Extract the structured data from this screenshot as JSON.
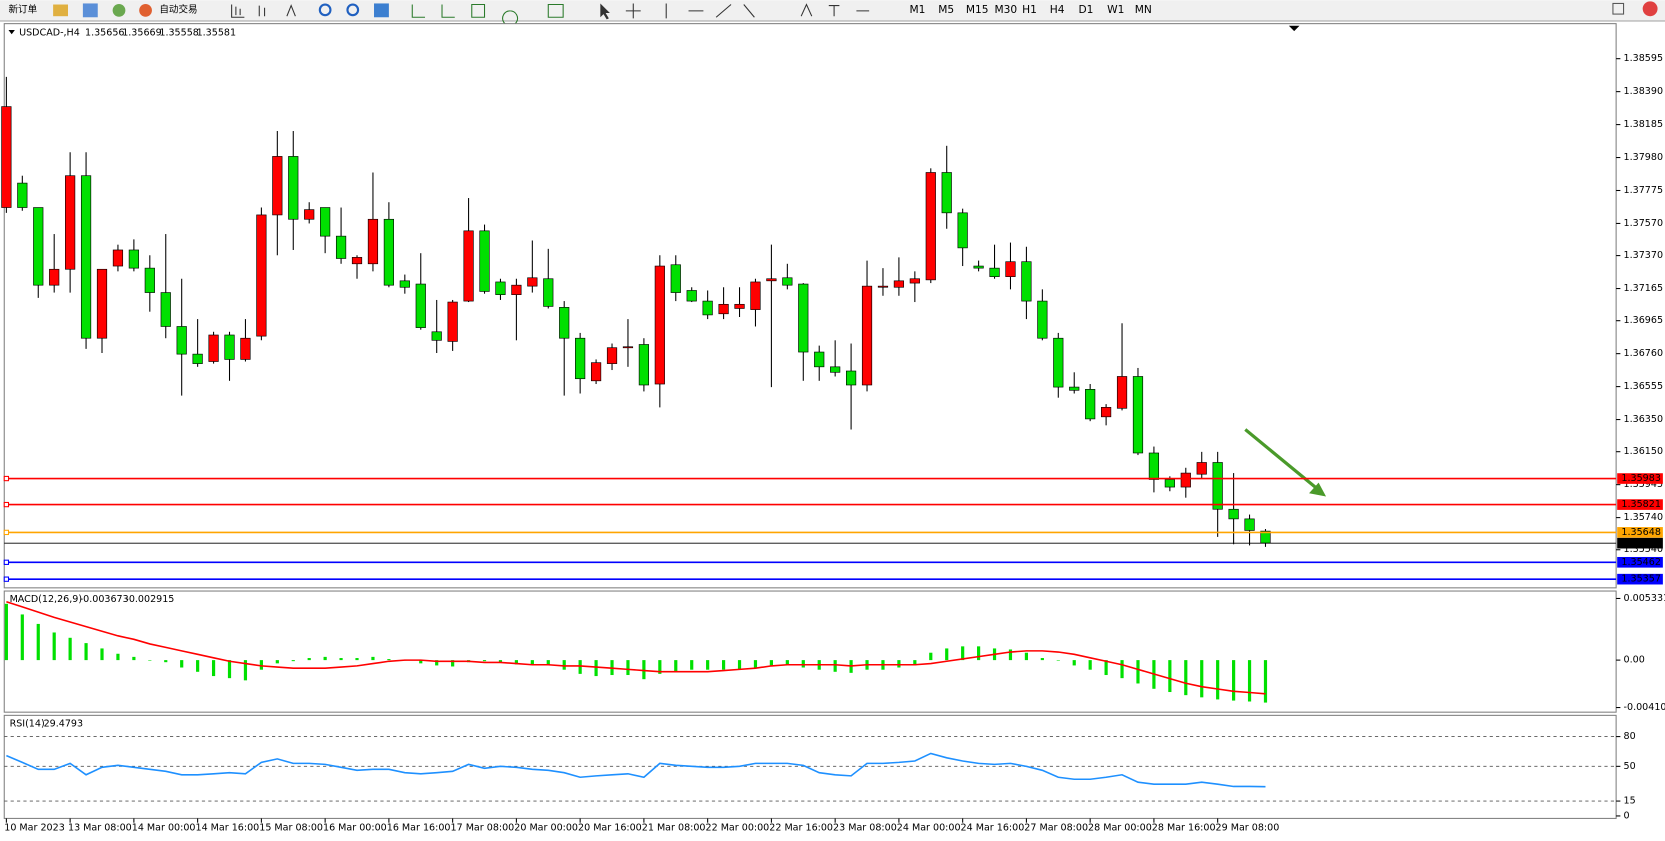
{
  "toolbar": {
    "buttons": [
      "新订单",
      "自动交易"
    ],
    "timeframes": [
      "M1",
      "M5",
      "M15",
      "M30",
      "H1",
      "H4",
      "D1",
      "W1",
      "MN"
    ]
  },
  "chart_data": [
    {
      "type": "candlestick",
      "title": "USDCAD-,H4",
      "categories": [
        "10 Mar 2023",
        null,
        null,
        null,
        "13 Mar 08:00",
        null,
        null,
        null,
        "14 Mar 00:00",
        null,
        null,
        null,
        "14 Mar 16:00",
        null,
        null,
        null,
        "15 Mar 08:00",
        null,
        null,
        null,
        "16 Mar 00:00",
        null,
        null,
        null,
        "16 Mar 16:00",
        null,
        null,
        null,
        "17 Mar 08:00",
        null,
        null,
        null,
        "20 Mar 00:00",
        null,
        null,
        null,
        "20 Mar 16:00",
        null,
        null,
        null,
        "21 Mar 08:00",
        null,
        null,
        null,
        "22 Mar 00:00",
        null,
        null,
        null,
        "22 Mar 16:00",
        null,
        null,
        null,
        "23 Mar 08:00",
        null,
        null,
        null,
        "24 Mar 00:00",
        null,
        null,
        null,
        "24 Mar 16:00",
        null,
        null,
        null,
        "27 Mar 08:00",
        null,
        null,
        null,
        "28 Mar 00:00",
        null,
        null,
        null,
        "28 Mar 16:00",
        null,
        null,
        null,
        "29 Mar 08:00",
        null,
        null,
        null
      ],
      "candles": [
        [
          1.37669,
          1.38482,
          1.37636,
          1.38297
        ],
        [
          1.37821,
          1.37867,
          1.37649,
          1.37669
        ],
        [
          1.37669,
          1.37669,
          1.37107,
          1.37186
        ],
        [
          1.37186,
          1.37504,
          1.3714,
          1.37285
        ],
        [
          1.37285,
          1.38013,
          1.3714,
          1.37867
        ],
        [
          1.37867,
          1.38013,
          1.3679,
          1.36856
        ],
        [
          1.36856,
          1.37285,
          1.36764,
          1.37285
        ],
        [
          1.37305,
          1.37438,
          1.37272,
          1.37405
        ],
        [
          1.37405,
          1.37471,
          1.37272,
          1.37292
        ],
        [
          1.37292,
          1.37372,
          1.37021,
          1.3714
        ],
        [
          1.3714,
          1.37504,
          1.36856,
          1.36929
        ],
        [
          1.36929,
          1.37226,
          1.36499,
          1.36757
        ],
        [
          1.36757,
          1.36975,
          1.36678,
          1.36698
        ],
        [
          1.36711,
          1.36896,
          1.36698,
          1.36876
        ],
        [
          1.36876,
          1.36896,
          1.36591,
          1.36724
        ],
        [
          1.36724,
          1.36975,
          1.36711,
          1.36856
        ],
        [
          1.36869,
          1.37669,
          1.36843,
          1.37623
        ],
        [
          1.37623,
          1.38145,
          1.37372,
          1.37987
        ],
        [
          1.37987,
          1.38145,
          1.37405,
          1.37596
        ],
        [
          1.37596,
          1.37702,
          1.3757,
          1.37656
        ],
        [
          1.37669,
          1.37669,
          1.37385,
          1.37491
        ],
        [
          1.37491,
          1.37669,
          1.37319,
          1.37352
        ],
        [
          1.37319,
          1.37372,
          1.37226,
          1.37359
        ],
        [
          1.37319,
          1.37887,
          1.37272,
          1.37596
        ],
        [
          1.37596,
          1.37702,
          1.37173,
          1.37186
        ],
        [
          1.37213,
          1.37252,
          1.37133,
          1.37173
        ],
        [
          1.37193,
          1.37385,
          1.36909,
          1.36922
        ],
        [
          1.36896,
          1.37094,
          1.36764,
          1.36843
        ],
        [
          1.36836,
          1.37094,
          1.36777,
          1.37081
        ],
        [
          1.37087,
          1.37728,
          1.37081,
          1.37524
        ],
        [
          1.37524,
          1.37563,
          1.37133,
          1.37147
        ],
        [
          1.37206,
          1.37226,
          1.37094,
          1.37127
        ],
        [
          1.37127,
          1.37226,
          1.36843,
          1.37186
        ],
        [
          1.3718,
          1.37464,
          1.3714,
          1.37232
        ],
        [
          1.37226,
          1.37412,
          1.37041,
          1.37054
        ],
        [
          1.37048,
          1.37087,
          1.36499,
          1.36856
        ],
        [
          1.36856,
          1.36889,
          1.36512,
          1.36604
        ],
        [
          1.36591,
          1.36724,
          1.36571,
          1.36704
        ],
        [
          1.36698,
          1.36823,
          1.36658,
          1.36797
        ],
        [
          1.36803,
          1.36975,
          1.36678,
          1.36803
        ],
        [
          1.36817,
          1.36856,
          1.36525,
          1.36565
        ],
        [
          1.36571,
          1.37372,
          1.36426,
          1.37305
        ],
        [
          1.37313,
          1.37372,
          1.37087,
          1.3714
        ],
        [
          1.37153,
          1.37173,
          1.37081,
          1.37087
        ],
        [
          1.37087,
          1.37153,
          1.36975,
          1.37001
        ],
        [
          1.37008,
          1.37173,
          1.36975,
          1.37067
        ],
        [
          1.37041,
          1.37173,
          1.36988,
          1.37067
        ],
        [
          1.37034,
          1.37226,
          1.36929,
          1.37206
        ],
        [
          1.37213,
          1.37438,
          1.36552,
          1.37226
        ],
        [
          1.37232,
          1.37319,
          1.3716,
          1.37186
        ],
        [
          1.37193,
          1.37199,
          1.36591,
          1.3677
        ],
        [
          1.3677,
          1.3681,
          1.36591,
          1.36678
        ],
        [
          1.36678,
          1.36843,
          1.36618,
          1.36644
        ],
        [
          1.36652,
          1.36823,
          1.36288,
          1.36565
        ],
        [
          1.36565,
          1.37339,
          1.36525,
          1.3718
        ],
        [
          1.37173,
          1.37292,
          1.3712,
          1.3718
        ],
        [
          1.37173,
          1.37359,
          1.3712,
          1.37213
        ],
        [
          1.37199,
          1.37272,
          1.37081,
          1.37226
        ],
        [
          1.37219,
          1.37913,
          1.37199,
          1.37887
        ],
        [
          1.37887,
          1.38053,
          1.37537,
          1.37636
        ],
        [
          1.37636,
          1.37662,
          1.37305,
          1.37418
        ],
        [
          1.37305,
          1.37339,
          1.37272,
          1.37292
        ],
        [
          1.37292,
          1.37438,
          1.37226,
          1.37239
        ],
        [
          1.37239,
          1.37451,
          1.3716,
          1.37332
        ],
        [
          1.37332,
          1.37425,
          1.36975,
          1.37087
        ],
        [
          1.37087,
          1.3716,
          1.36843,
          1.36856
        ],
        [
          1.36856,
          1.36889,
          1.36486,
          1.36552
        ],
        [
          1.36552,
          1.36644,
          1.36512,
          1.36532
        ],
        [
          1.36538,
          1.36571,
          1.3634,
          1.36354
        ],
        [
          1.36367,
          1.36446,
          1.36314,
          1.36426
        ],
        [
          1.3642,
          1.36949,
          1.36407,
          1.36618
        ],
        [
          1.36618,
          1.36671,
          1.36129,
          1.36142
        ],
        [
          1.36142,
          1.36182,
          1.35897,
          1.35977
        ],
        [
          1.35977,
          1.35997,
          1.35904,
          1.3593
        ],
        [
          1.3593,
          1.3605,
          1.35864,
          1.36017
        ],
        [
          1.3601,
          1.36149,
          1.35984,
          1.36083
        ],
        [
          1.36083,
          1.36149,
          1.3562,
          1.35792
        ],
        [
          1.35792,
          1.36017,
          1.35574,
          1.35732
        ],
        [
          1.35732,
          1.35759,
          1.35567,
          1.3566
        ],
        [
          1.35656,
          1.35669,
          1.35558,
          1.35581
        ]
      ],
      "up_color": "#ff0000",
      "down_color": "#00e000",
      "hlines": [
        {
          "value": 1.35983,
          "color": "#ff0000"
        },
        {
          "value": 1.35821,
          "color": "#ff0000"
        },
        {
          "value": 1.35648,
          "color": "#ffa500"
        },
        {
          "value": 1.35462,
          "color": "#0000ff"
        },
        {
          "value": 1.35357,
          "color": "#0000ff"
        }
      ],
      "ylim": [
        1.35303,
        1.38813
      ],
      "yticks": [
        1.38595,
        {
          "value": 1.3839,
          "label": "1.38390"
        },
        1.38185,
        {
          "value": 1.3798,
          "label": "1.37980"
        },
        1.37775,
        {
          "value": 1.3757,
          "label": "1.37570"
        },
        {
          "value": 1.3737,
          "label": "1.37370"
        },
        1.37165,
        1.36965,
        {
          "value": 1.3676,
          "label": "1.36760"
        },
        1.36555,
        {
          "value": 1.3635,
          "label": "1.36350"
        },
        {
          "value": 1.3615,
          "label": "1.36150"
        },
        1.35945,
        {
          "value": 1.3574,
          "label": "1.35740"
        },
        {
          "value": 1.3554,
          "label": "1.35540"
        }
      ]
    },
    {
      "type": "macd",
      "title": "MACD(12,26,9)",
      "color": "#00e000",
      "signal_color": "#ff0000",
      "histogram": [
        0.00487,
        0.00395,
        0.00313,
        0.00239,
        0.00193,
        0.00147,
        0.00101,
        0.00055,
        0.00028,
        0,
        -0.00018,
        -0.00064,
        -0.00101,
        -0.00138,
        -0.00156,
        -0.00175,
        -0.00083,
        -0.00028,
        -9e-05,
        0.00018,
        0.00028,
        0.00018,
        0.00018,
        0.00028,
        9e-05,
        0,
        -0.00028,
        -0.00046,
        -0.00055,
        -0.00018,
        -9e-05,
        -0.00018,
        -0.00037,
        -0.00037,
        -0.00046,
        -0.00083,
        -0.00119,
        -0.00138,
        -0.00129,
        -0.00129,
        -0.00165,
        -0.00119,
        -0.00101,
        -0.00083,
        -0.00083,
        -0.00083,
        -0.00083,
        -0.00064,
        -0.00046,
        -0.00046,
        -0.00064,
        -0.00083,
        -0.00101,
        -0.0011,
        -0.00083,
        -0.00083,
        -0.00064,
        -0.00046,
        0.00064,
        0.00101,
        0.00119,
        0.00119,
        0.00101,
        0.00092,
        0.00064,
        0.00018,
        0,
        -0.00046,
        -0.00083,
        -0.00129,
        -0.00156,
        -0.00202,
        -0.00248,
        -0.00276,
        -0.00303,
        -0.00322,
        -0.0034,
        -0.0035,
        -0.00358,
        -0.003673
      ],
      "signal": [
        0.00505,
        0.0046,
        0.00415,
        0.0037,
        0.0033,
        0.0029,
        0.0025,
        0.0021,
        0.0018,
        0.0014,
        0.0011,
        0.0008,
        0.0005,
        0.0002,
        -0.0001,
        -0.0003,
        -0.0005,
        -0.0006,
        -0.0007,
        -0.0007,
        -0.0007,
        -0.0006,
        -0.0005,
        -0.0003,
        -0.0001,
        0,
        0,
        -0.0001,
        -0.0001,
        -0.0001,
        -0.0002,
        -0.0002,
        -0.0003,
        -0.0004,
        -0.0004,
        -0.0005,
        -0.0005,
        -0.0006,
        -0.0007,
        -0.0008,
        -0.0009,
        -0.001,
        -0.001,
        -0.001,
        -0.001,
        -0.0009,
        -0.0008,
        -0.0007,
        -0.0005,
        -0.0004,
        -0.0004,
        -0.0004,
        -0.0004,
        -0.0005,
        -0.0004,
        -0.0004,
        -0.0004,
        -0.0004,
        -0.0003,
        -0.0001,
        0.0001,
        0.0003,
        0.0005,
        0.0007,
        0.0008,
        0.0008,
        0.0007,
        0.0005,
        0.0002,
        -0.0001,
        -0.0004,
        -0.0008,
        -0.0012,
        -0.0016,
        -0.002,
        -0.0023,
        -0.0025,
        -0.0027,
        -0.0028,
        -0.002915
      ],
      "ylim": [
        -0.00441,
        0.00579
      ],
      "yticks": [
        0.005331,
        {
          "value": 0,
          "label": "0.00"
        },
        -0.004102
      ]
    },
    {
      "type": "rsi",
      "title": "RSI(14)",
      "color": "#1e90ff",
      "values": [
        60.8,
        54,
        47,
        47,
        53,
        41.5,
        49,
        51,
        49,
        47,
        45,
        41.5,
        41.5,
        42.5,
        43.6,
        42.5,
        54,
        57.5,
        53,
        53,
        52,
        49,
        46,
        47,
        47,
        43.6,
        42.5,
        43.6,
        45,
        52,
        48,
        50,
        49,
        47,
        46,
        43.6,
        39,
        40.4,
        41.5,
        42.5,
        39,
        53,
        51,
        50,
        49,
        49,
        50,
        53,
        53,
        53,
        51,
        43.6,
        41.5,
        40.4,
        53,
        53,
        54,
        55.4,
        63,
        58.6,
        55.4,
        53,
        52,
        53,
        50,
        46,
        39,
        37,
        37,
        39,
        41.5,
        34,
        32,
        32,
        32,
        34,
        32,
        29.7,
        29.7,
        29.4793
      ],
      "ylim": [
        -2.5,
        101.4
      ],
      "yticks": [
        80,
        50,
        15,
        0
      ],
      "levels": [
        80,
        50,
        15
      ]
    }
  ]
}
